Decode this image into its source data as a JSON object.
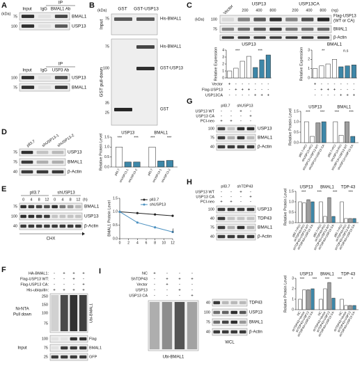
{
  "A": {
    "label": "A",
    "kda": "(kDa)",
    "top": {
      "ip": "IP",
      "lanes": [
        "Input",
        "IgG",
        "BMAL1 Ab"
      ],
      "markers": [
        75,
        100
      ],
      "bands": [
        "BMAL1",
        "USP13"
      ]
    },
    "bottom": {
      "ip": "IP",
      "lanes": [
        "Input",
        "IgG",
        "USP3 Ab"
      ],
      "markers": [
        100,
        75
      ],
      "bands": [
        "USP13",
        "BMAL1"
      ]
    }
  },
  "B": {
    "label": "B",
    "kda": "(kDa)",
    "lanes": [
      "GST",
      "GST-USP13"
    ],
    "sections": [
      "Input",
      "GST pull-down"
    ],
    "markers": [
      75,
      75,
      100,
      35,
      25
    ],
    "bands": [
      "His-BMAL1",
      "His-BMAL1",
      "GST-USP13",
      "GST"
    ]
  },
  "C": {
    "label": "C",
    "kda": "(kDa)",
    "lanes": [
      "Vector",
      "USP13",
      "USP13CA"
    ],
    "doses": [
      200,
      400,
      800,
      200,
      400,
      800
    ],
    "dose_unit": "(ng)",
    "markers": [
      100,
      75
    ],
    "bands": [
      "Flag-USP13",
      "(WT or CA)",
      "BMAL1",
      "β-Actin"
    ],
    "treatments": [
      {
        "name": "Vector",
        "signs": [
          "+",
          "-",
          "-",
          "-",
          "-",
          "-",
          "-"
        ]
      },
      {
        "name": "Flag-USP13",
        "signs": [
          "-",
          "+",
          "+",
          "+",
          "-",
          "-",
          "-"
        ]
      },
      {
        "name": "USP13CA",
        "signs": [
          "-",
          "-",
          "-",
          "-",
          "+",
          "+",
          "+"
        ]
      }
    ],
    "charts": [
      {
        "type": "bar",
        "title": "USP13",
        "ylabel": "Relative Expression",
        "values": [
          1,
          1.4,
          2.4,
          3.1,
          1.5,
          2.6,
          3.3
        ],
        "colors": [
          "#ffffff",
          "#ffffff",
          "#ffffff",
          "#ffffff",
          "#3e87a8",
          "#3e87a8",
          "#3e87a8"
        ],
        "ylim": [
          0,
          4
        ],
        "yticks": [
          0,
          1,
          2,
          3,
          4
        ],
        "annotations": [
          "***",
          "***"
        ]
      },
      {
        "type": "bar",
        "title": "BMAL1",
        "ylabel": "Relative Expression",
        "values": [
          1,
          1.3,
          1.5,
          2.0,
          1.2,
          1.3,
          1.4
        ],
        "colors": [
          "#ffffff",
          "#ffffff",
          "#ffffff",
          "#ffffff",
          "#3e87a8",
          "#3e87a8",
          "#3e87a8"
        ],
        "ylim": [
          0,
          3
        ],
        "yticks": [
          0,
          1,
          2,
          3
        ],
        "annotations": [
          "**",
          "n.s"
        ]
      }
    ]
  },
  "D": {
    "label": "D",
    "lanes": [
      "pll3.7",
      "shUSP13-1",
      "shUSP13-2"
    ],
    "markers": [
      75,
      75,
      40
    ],
    "bands": [
      "USP13",
      "BMAL1",
      "β-Actin"
    ],
    "chart": {
      "type": "bar",
      "ylabel": "Relative Protein Level",
      "categories": [
        "pll3.7",
        "shUSP13-1",
        "shUSP13-2"
      ],
      "colors": [
        "#ffffff",
        "#3e87a8",
        "#3e87a8"
      ],
      "series": [
        {
          "name": "USP13",
          "values": [
            1,
            0.25,
            0.25
          ]
        },
        {
          "name": "BMAL1",
          "values": [
            1,
            0.3,
            0.33
          ]
        }
      ],
      "ylim": [
        0,
        1.5
      ],
      "yticks": [
        {
          "value": 0,
          "label": "0.0"
        },
        {
          "value": 0.5,
          "label": "0.5"
        },
        {
          "value": 1,
          "label": "1.0"
        },
        {
          "value": 1.5,
          "label": "1.5"
        }
      ],
      "annotations": [
        "***",
        "***",
        "***",
        "***"
      ]
    }
  },
  "E": {
    "label": "E",
    "conditions": [
      "pll3.7",
      "shUSP13"
    ],
    "times": [
      0,
      4,
      8,
      12,
      0,
      4,
      8,
      12
    ],
    "time_unit": "(h)",
    "markers": [
      75,
      100,
      40
    ],
    "bands": [
      "BMAL1",
      "USP13",
      "β-Actin"
    ],
    "treatment": "CHX",
    "chart": {
      "type": "line",
      "ylabel": "BMAL1 Protein Level",
      "x": [
        0,
        4,
        8,
        12
      ],
      "series": [
        {
          "name": "pll3.7",
          "color": "#222222",
          "values": [
            1,
            0.95,
            0.9,
            0.85
          ]
        },
        {
          "name": "shUSP13",
          "color": "#4a90c0",
          "values": [
            1,
            0.6,
            0.42,
            0.25
          ]
        }
      ],
      "xlim": [
        0,
        12
      ],
      "xticks": [
        0,
        2,
        4,
        6,
        8,
        10,
        12
      ],
      "ylim": [
        0,
        1.5
      ],
      "yticks": [
        {
          "value": 0,
          "label": "0.0"
        },
        {
          "value": 0.5,
          "label": "0.5"
        },
        {
          "value": 1,
          "label": "1.0"
        },
        {
          "value": 1.5,
          "label": "1.5"
        }
      ],
      "annotations": [
        "***"
      ]
    }
  },
  "F": {
    "label": "F",
    "treatments": [
      {
        "name": "HA-BMAL1:",
        "signs": [
          "-",
          "+",
          "+",
          "+"
        ]
      },
      {
        "name": "Flag-USP13 WT:",
        "signs": [
          "-",
          "-",
          "+",
          "-"
        ]
      },
      {
        "name": "Flag-USP13 CA:",
        "signs": [
          "-",
          "-",
          "-",
          "+"
        ]
      },
      {
        "name": "His-ubiquitin:",
        "signs": [
          "+",
          "+",
          "+",
          "+"
        ]
      }
    ],
    "pulldown": [
      "Ni-NTA",
      "Pull down"
    ],
    "input": "Input",
    "pulldown_markers": [
      250,
      150,
      100,
      75
    ],
    "input_markers": [
      100,
      75,
      25
    ],
    "pulldown_band": "Ubi-BMAL1",
    "bands": [
      "Flag",
      "BMAL1",
      "GFP"
    ]
  },
  "G": {
    "label": "G",
    "lanes": [
      "pll3.7",
      "shUSP13"
    ],
    "treatments": [
      {
        "name": "USP13 WT",
        "signs": [
          "-",
          "-",
          "+",
          "-"
        ]
      },
      {
        "name": "USP13 CA",
        "signs": [
          "-",
          "-",
          "-",
          "+"
        ]
      },
      {
        "name": "PCI-neo",
        "signs": [
          "+",
          "+",
          "-",
          "-"
        ]
      }
    ],
    "markers": [
      100,
      75,
      40
    ],
    "bands": [
      "USP13",
      "BMAL1",
      "β-Actin"
    ],
    "chart": {
      "type": "bar",
      "ylabel": "Relative Protein Level",
      "categories": [
        "pll3.7+PCI",
        "shUSP13+PCI",
        "shUSP13+USP13 WT",
        "shUSP13+USP13 CA"
      ],
      "colors": [
        "#ffffff",
        "#ffffff",
        "#9e9e9e",
        "#3e87a8"
      ],
      "series": [
        {
          "name": "USP13",
          "values": [
            1,
            0.3,
            0.95,
            1.0
          ]
        },
        {
          "name": "BMAL1",
          "values": [
            1,
            0.35,
            1.0,
            0.3
          ]
        }
      ],
      "ylim": [
        0,
        1.5
      ],
      "yticks": [
        {
          "value": 0,
          "label": "0.0"
        },
        {
          "value": 0.5,
          "label": "0.5"
        },
        {
          "value": 1,
          "label": "1.0"
        },
        {
          "value": 1.5,
          "label": "1.5"
        }
      ],
      "annotations": [
        "***",
        "***",
        "***",
        "***"
      ]
    }
  },
  "H": {
    "label": "H",
    "lanes": [
      "pll3.7",
      "shTDP43"
    ],
    "treatments": [
      {
        "name": "USP13 WT",
        "signs": [
          "-",
          "-",
          "+",
          "-"
        ]
      },
      {
        "name": "USP13 CA",
        "signs": [
          "-",
          "-",
          "-",
          "+"
        ]
      },
      {
        "name": "PCI-neo",
        "signs": [
          "+",
          "+",
          "-",
          "-"
        ]
      }
    ],
    "markers": [
      100,
      40,
      75,
      40
    ],
    "bands": [
      "USP13",
      "TDP43",
      "BMAL1",
      "β-Actin"
    ],
    "chart": {
      "type": "bar",
      "ylabel": "Relative Protein Level",
      "categories": [
        "pll3.7+PCI",
        "shTDP43+PCI",
        "shTDP43+USP13 WT",
        "shTDP43+USP13 CA"
      ],
      "colors": [
        "#ffffff",
        "#ffffff",
        "#9e9e9e",
        "#3e87a8"
      ],
      "series": [
        {
          "name": "USP13",
          "values": [
            1,
            0.95,
            1.1,
            1.0
          ]
        },
        {
          "name": "BMAL1",
          "values": [
            1,
            0.3,
            1.2,
            0.3
          ]
        },
        {
          "name": "TDP-43",
          "values": [
            1,
            0.2,
            0.2,
            0.2
          ]
        }
      ],
      "ylim": [
        0,
        1.5
      ],
      "yticks": [
        {
          "value": 0,
          "label": "0.0"
        },
        {
          "value": 0.5,
          "label": "0.5"
        },
        {
          "value": 1,
          "label": "1.0"
        },
        {
          "value": 1.5,
          "label": "1.5"
        }
      ],
      "annotations": [
        "***",
        "***",
        "***",
        "***"
      ]
    }
  },
  "I": {
    "label": "I",
    "treatments": [
      {
        "name": "NC",
        "signs": [
          "+",
          "-",
          "-",
          "-"
        ]
      },
      {
        "name": "ShTDP43",
        "signs": [
          "-",
          "+",
          "+",
          "+"
        ]
      },
      {
        "name": "Vector",
        "signs": [
          "-",
          "+",
          "-",
          "-"
        ]
      },
      {
        "name": "USP13",
        "signs": [
          "-",
          "-",
          "+",
          "-"
        ]
      },
      {
        "name": "USP13 CA",
        "signs": [
          "-",
          "-",
          "-",
          "+"
        ]
      }
    ],
    "ubi_band": "Ubi-BMAL1",
    "wcl": "WCL",
    "markers": [
      40,
      100,
      75,
      40
    ],
    "bands": [
      "TDP43",
      "USP13",
      "BMAL1",
      "β-Actin"
    ],
    "chart": {
      "type": "bar",
      "ylabel": "Relative Protein Level",
      "categories": [
        "NC",
        "shTDP43+Vector",
        "shTDP43+USP13",
        "shTDP43+USP13 CA"
      ],
      "colors": [
        "#ffffff",
        "#ffffff",
        "#9e9e9e",
        "#3e87a8"
      ],
      "series": [
        {
          "name": "USP13",
          "values": [
            1,
            1.9,
            1.9,
            2.0
          ]
        },
        {
          "name": "BMAL1",
          "values": [
            1,
            2.0,
            2.6,
            1.1
          ]
        },
        {
          "name": "TDP-43",
          "values": [
            1,
            0.4,
            0.4,
            0.4
          ]
        }
      ],
      "ylim": [
        0,
        3
      ],
      "yticks": [
        0,
        1,
        2,
        3
      ],
      "annotations": [
        "***",
        "***",
        "***",
        "***",
        "*"
      ]
    }
  }
}
